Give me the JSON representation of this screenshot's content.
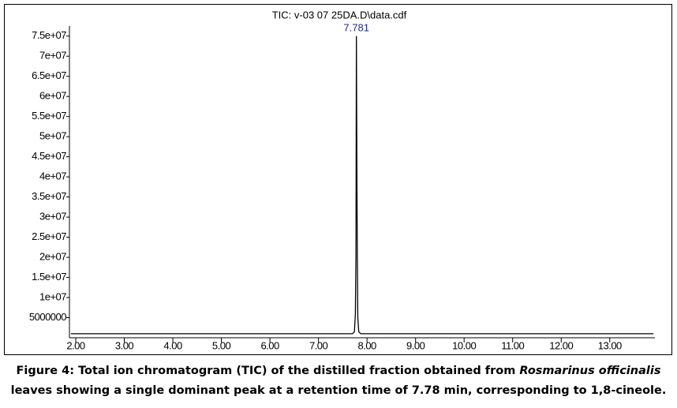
{
  "chart_data": {
    "type": "line",
    "title": "TIC: v-03 07 25DA.D\\data.cdf",
    "x": [
      1.9,
      7.7,
      7.74,
      7.76,
      7.772,
      7.781,
      7.79,
      7.8,
      7.81,
      7.83,
      7.87,
      13.9
    ],
    "series": [
      {
        "name": "TIC",
        "color": "#000000",
        "values": [
          1000000,
          1000000,
          1500000,
          6000000,
          20000000,
          75000000,
          46000000,
          20000000,
          5000000,
          1500000,
          1000000,
          1000000
        ]
      }
    ],
    "peak_labels": [
      {
        "x": 7.781,
        "label": "7.781",
        "color": "#1f2a9a"
      }
    ],
    "xlim": [
      1.87,
      13.93
    ],
    "xticks": [
      {
        "value": 2,
        "label": "2.00"
      },
      {
        "value": 3,
        "label": "3.00"
      },
      {
        "value": 4,
        "label": "4.00"
      },
      {
        "value": 5,
        "label": "5.00"
      },
      {
        "value": 6,
        "label": "6.00"
      },
      {
        "value": 7,
        "label": "7.00"
      },
      {
        "value": 8,
        "label": "8.00"
      },
      {
        "value": 9,
        "label": "9.00"
      },
      {
        "value": 10,
        "label": "10.00"
      },
      {
        "value": 11,
        "label": "11.00"
      },
      {
        "value": 12,
        "label": "12.00"
      },
      {
        "value": 13,
        "label": "13.00"
      }
    ],
    "ylim": [
      0,
      77500000
    ],
    "yticks": [
      5000000,
      {
        "value": 10000000,
        "label": "1e+07"
      },
      {
        "value": 15000000,
        "label": "1.5e+07"
      },
      {
        "value": 20000000,
        "label": "2e+07"
      },
      {
        "value": 25000000,
        "label": "2.5e+07"
      },
      {
        "value": 30000000,
        "label": "3e+07"
      },
      {
        "value": 35000000,
        "label": "3.5e+07"
      },
      {
        "value": 40000000,
        "label": "4e+07"
      },
      {
        "value": 45000000,
        "label": "4.5e+07"
      },
      {
        "value": 50000000,
        "label": "5e+07"
      },
      {
        "value": 55000000,
        "label": "5.5e+07"
      },
      {
        "value": 60000000,
        "label": "6e+07"
      },
      {
        "value": 65000000,
        "label": "6.5e+07"
      },
      {
        "value": 70000000,
        "label": "7e+07"
      },
      {
        "value": 75000000,
        "label": "7.5e+07"
      }
    ]
  },
  "caption": {
    "line1": [
      "Figure 4: Total ion chromatogram (TIC) of the distilled fraction obtained from ",
      "Rosmarinus officinalis"
    ],
    "line2": "leaves showing a single dominant peak at a retention time of 7.78 min, corresponding to 1,8-cineole."
  }
}
